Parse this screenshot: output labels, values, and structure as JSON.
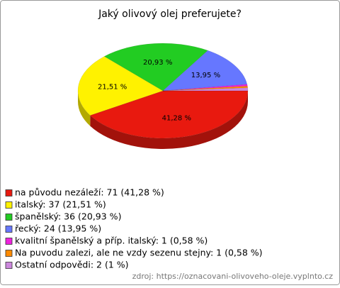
{
  "chart_data": {
    "type": "pie",
    "title": "Jaký olivový olej preferujete?",
    "categories": [
      "na původu nezáleží: 71 (41,28 %)",
      "italský: 37 (21,51 %)",
      "španělský: 36 (20,93 %)",
      "řecký: 24 (13,95 %)",
      "kvalitní španělský a příp. italský: 1 (0,58 %)",
      "Na puvodu zalezi, ale ne vzdy sezenu stejny: 1 (0,58 %)",
      "Ostatní odpovědi: 2 (1 %)"
    ],
    "values": [
      41.28,
      21.51,
      20.93,
      13.95,
      0.58,
      0.58,
      1
    ],
    "value_labels": [
      "41,28 %",
      "21,51 %",
      "20,93 %",
      "13,95 %",
      null,
      null,
      null
    ],
    "colors": [
      "#e8190f",
      "#fff200",
      "#22cc22",
      "#6677ff",
      "#ee22dd",
      "#ff8a00",
      "#cc88dd"
    ],
    "source": "zdroj: https://oznacovani-olivoveho-oleje.vyplnto.cz"
  }
}
